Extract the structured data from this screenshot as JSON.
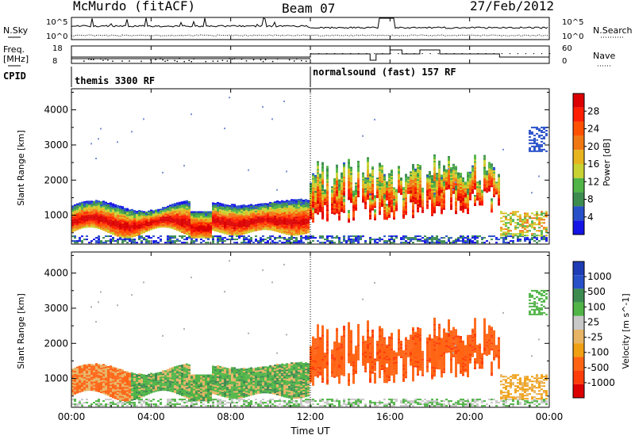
{
  "header": {
    "station": "McMurdo (fitACF)",
    "beam": "Beam 07",
    "date": "27/Feb/2012"
  },
  "noise_panel": {
    "left_label": "N.Sky",
    "right_label": "N.Search",
    "left_ticks": [
      "10^5",
      "10^0"
    ],
    "right_ticks": [
      "10^5",
      "10^0"
    ]
  },
  "freq_panel": {
    "left_label_1": "Freq.",
    "left_label_2": "[MHz]",
    "right_label": "Nave",
    "left_ticks": [
      "18",
      "8"
    ],
    "right_ticks": [
      "60",
      "0"
    ]
  },
  "cpid": {
    "label": "CPID",
    "modes": [
      {
        "name": "themis 3300 RF",
        "start_hour": 0
      },
      {
        "name": "normalsound (fast) 157 RF",
        "start_hour": 12
      }
    ]
  },
  "chart_data": [
    {
      "type": "heatmap",
      "quantity": "Power",
      "ylabel": "Slant Range [km]",
      "ylim": [
        180,
        4600
      ],
      "yticks": [
        "1000",
        "2000",
        "3000",
        "4000"
      ],
      "colorbar_label": "Power [dB]",
      "colorbar_ticks": [
        "4",
        "8",
        "12",
        "16",
        "20",
        "24",
        "28"
      ],
      "colors": [
        "#1414e6",
        "#2850c8",
        "#3c8c50",
        "#50b446",
        "#c8d232",
        "#e6b41e",
        "#f07814",
        "#ff5000",
        "#ff1e00",
        "#dc0000"
      ]
    },
    {
      "type": "heatmap",
      "quantity": "Velocity",
      "ylabel": "Slant Range [km]",
      "ylim": [
        180,
        4600
      ],
      "yticks": [
        "1000",
        "2000",
        "3000",
        "4000"
      ],
      "colorbar_label": "Velocity [m s^-1]",
      "colorbar_ticks": [
        "1000",
        "500",
        "100",
        "25",
        "-25",
        "-100",
        "-500",
        "-1000"
      ],
      "colors": [
        "#1e3cb4",
        "#2850c8",
        "#3c8c50",
        "#50b446",
        "#c8c8c8",
        "#e6b464",
        "#f0a014",
        "#ff6414",
        "#ff3c0a",
        "#dc0000"
      ],
      "xlabel": "Time UT"
    }
  ],
  "x_axis": {
    "xlim_hours": [
      0,
      24
    ],
    "tick_labels": [
      "00:00",
      "04:00",
      "08:00",
      "12:00",
      "16:00",
      "20:00",
      "00:00"
    ],
    "xlabel": "Time UT"
  },
  "colors": {
    "power_high": "#e60000",
    "velocity_negative": "#ff6414",
    "velocity_positive": "#3c8c50"
  }
}
